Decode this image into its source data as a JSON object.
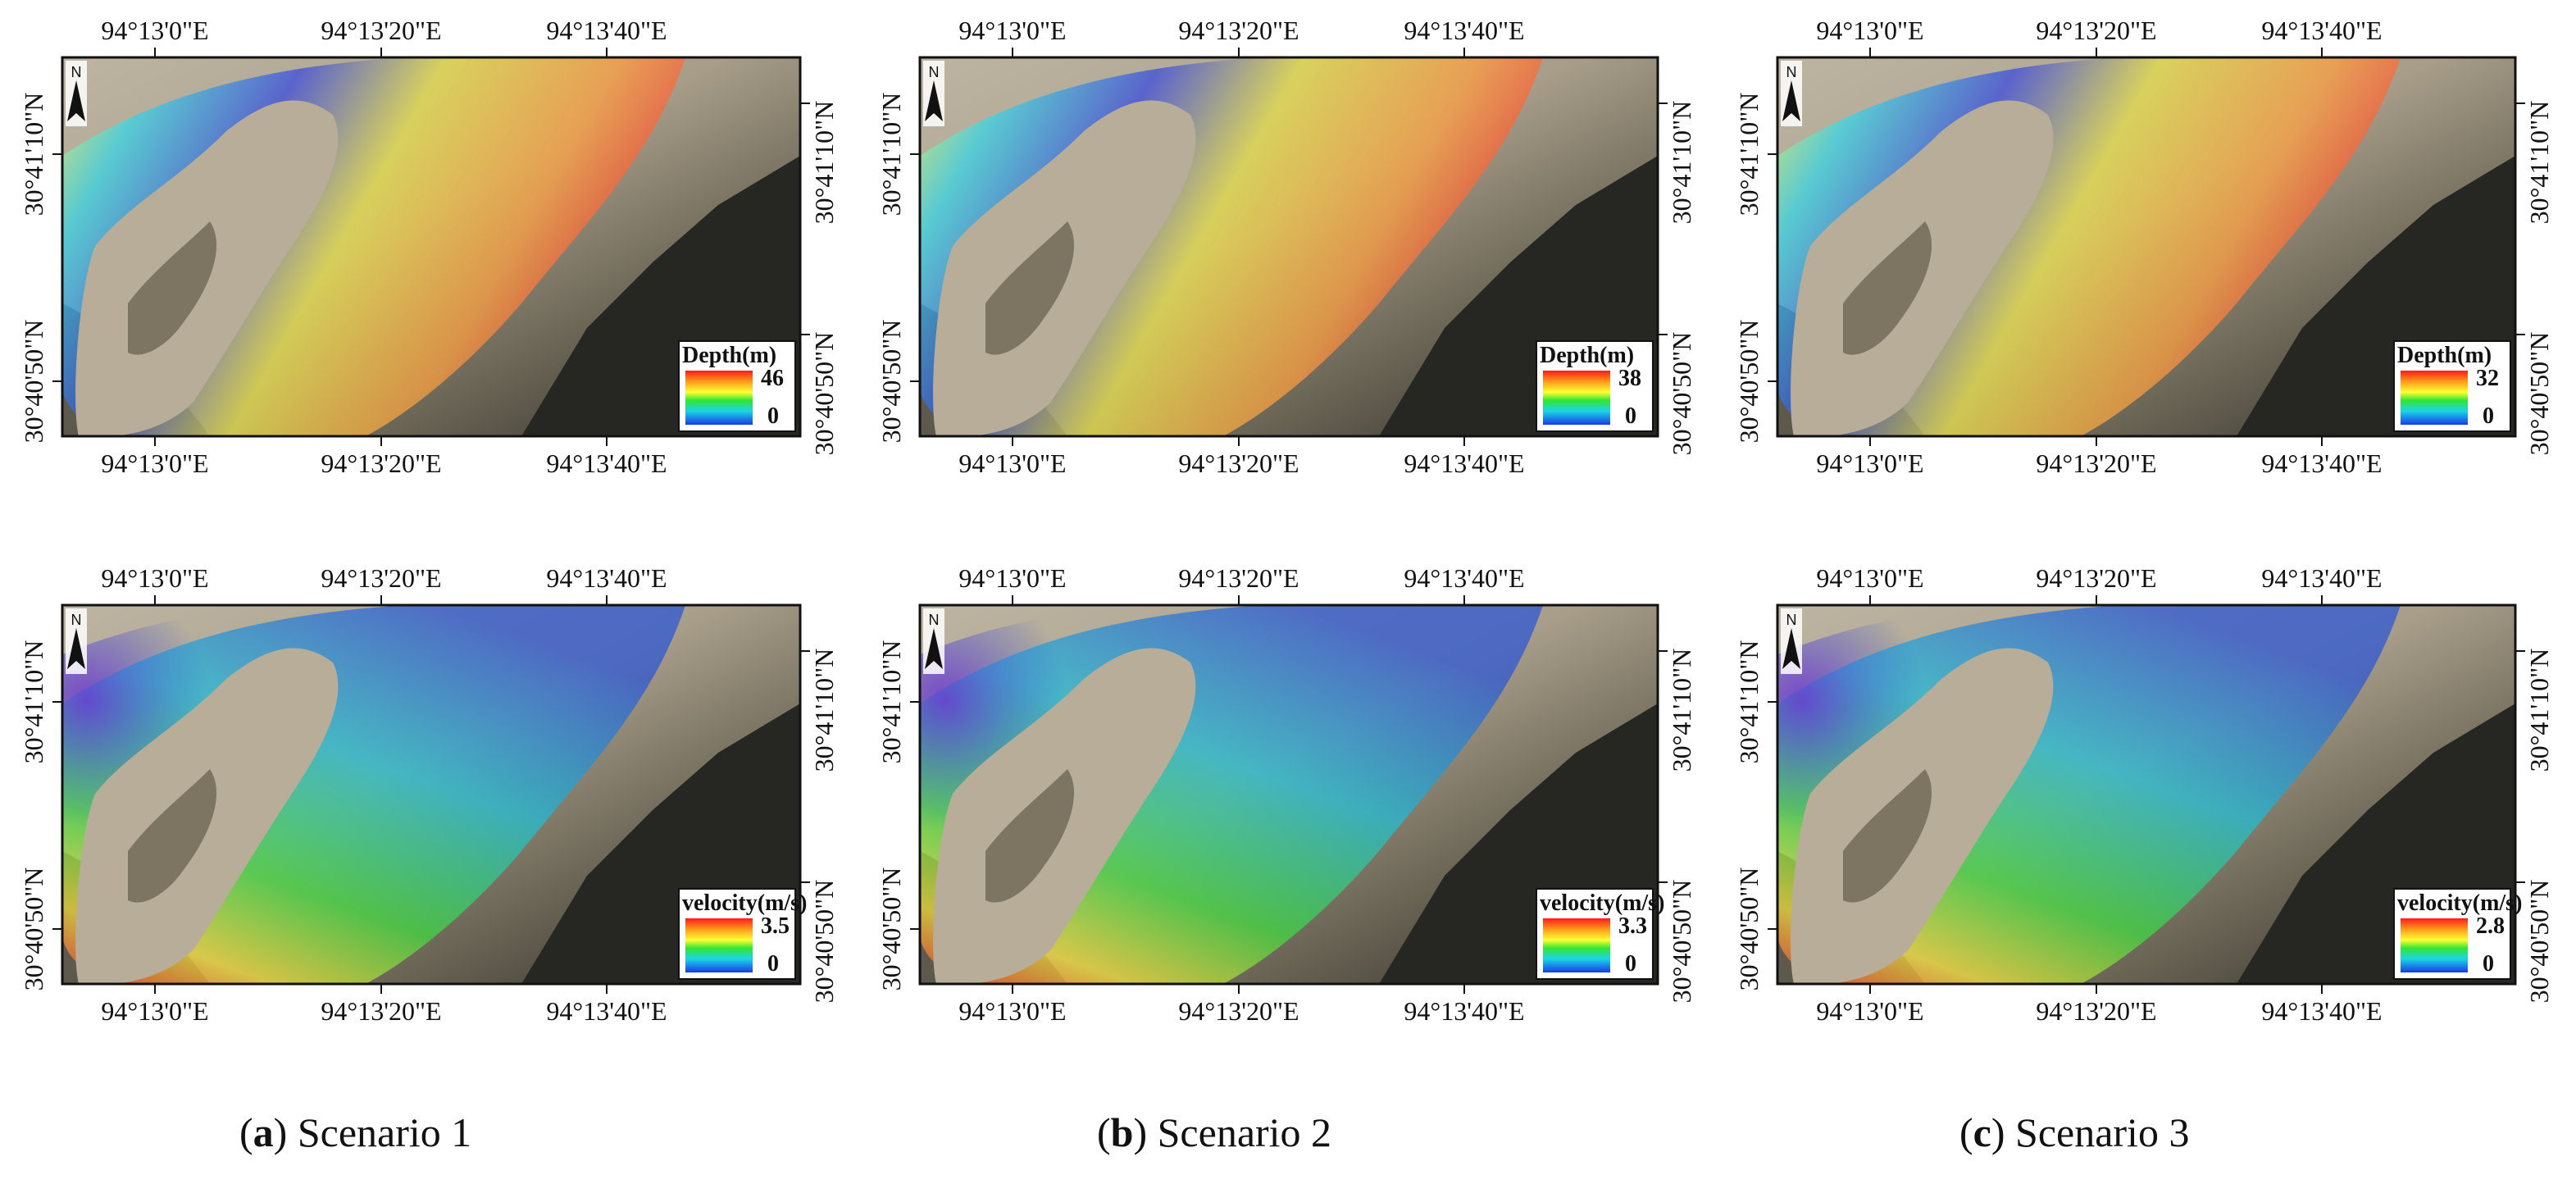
{
  "colors": {
    "terrain_light": "#c9bfae",
    "terrain_mid": "#8a826f",
    "terrain_dark": "#262622",
    "outcrop": "#b8ad98"
  },
  "panels": [
    {
      "id": "a",
      "scenario": "Scenario 1",
      "rows": [
        {
          "variable": "Depth(m)",
          "max": "46",
          "min": "0",
          "coords": {
            "top": [
              "94°13'0\"E",
              "94°13'20\"E",
              "94°13'40\"E"
            ],
            "bottom": [
              "94°13'0\"E",
              "94°13'20\"E",
              "94°13'40\"E"
            ],
            "left": [
              "30°41'10\"N",
              "30°40'50\"N"
            ],
            "right": [
              "30°41'10\"N",
              "30°40'50\"N"
            ]
          }
        },
        {
          "variable": "velocity(m/s)",
          "max": "3.5",
          "min": "0",
          "coords": {
            "top": [
              "94°13'0\"E",
              "94°13'20\"E",
              "94°13'40\"E"
            ],
            "bottom": [
              "94°13'0\"E",
              "94°13'20\"E",
              "94°13'40\"E"
            ],
            "left": [
              "30°41'10\"N",
              "30°40'50\"N"
            ],
            "right": [
              "30°41'10\"N",
              "30°40'50\"N"
            ]
          }
        }
      ]
    },
    {
      "id": "b",
      "scenario": "Scenario 2",
      "rows": [
        {
          "variable": "Depth(m)",
          "max": "38",
          "min": "0",
          "coords": {
            "top": [
              "94°13'0\"E",
              "94°13'20\"E",
              "94°13'40\"E"
            ],
            "bottom": [
              "94°13'0\"E",
              "94°13'20\"E",
              "94°13'40\"E"
            ],
            "left": [
              "30°41'10\"N",
              "30°40'50\"N"
            ],
            "right": [
              "30°41'10\"N",
              "30°40'50\"N"
            ]
          }
        },
        {
          "variable": "velocity(m/s)",
          "max": "3.3",
          "min": "0",
          "coords": {
            "top": [
              "94°13'0\"E",
              "94°13'20\"E",
              "94°13'40\"E"
            ],
            "bottom": [
              "94°13'0\"E",
              "94°13'20\"E",
              "94°13'40\"E"
            ],
            "left": [
              "30°41'10\"N",
              "30°40'50\"N"
            ],
            "right": [
              "30°41'10\"N",
              "30°40'50\"N"
            ]
          }
        }
      ]
    },
    {
      "id": "c",
      "scenario": "Scenario 3",
      "rows": [
        {
          "variable": "Depth(m)",
          "max": "32",
          "min": "0",
          "coords": {
            "top": [
              "94°13'0\"E",
              "94°13'20\"E",
              "94°13'40\"E"
            ],
            "bottom": [
              "94°13'0\"E",
              "94°13'20\"E",
              "94°13'40\"E"
            ],
            "left": [
              "30°41'10\"N",
              "30°40'50\"N"
            ],
            "right": [
              "30°41'10\"N",
              "30°40'50\"N"
            ]
          }
        },
        {
          "variable": "velocity(m/s)",
          "max": "2.8",
          "min": "0",
          "coords": {
            "top": [
              "94°13'0\"E",
              "94°13'20\"E",
              "94°13'40\"E"
            ],
            "bottom": [
              "94°13'0\"E",
              "94°13'20\"E",
              "94°13'40\"E"
            ],
            "left": [
              "30°41'10\"N",
              "30°40'50\"N"
            ],
            "right": [
              "30°41'10\"N",
              "30°40'50\"N"
            ]
          }
        }
      ]
    }
  ],
  "north_arrow_label": "N"
}
